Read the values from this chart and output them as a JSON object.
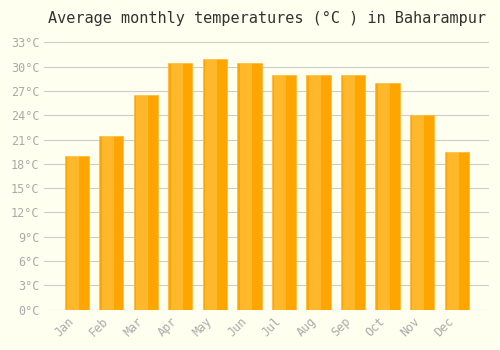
{
  "title": "Average monthly temperatures (°C ) in Baharampur",
  "months": [
    "Jan",
    "Feb",
    "Mar",
    "Apr",
    "May",
    "Jun",
    "Jul",
    "Aug",
    "Sep",
    "Oct",
    "Nov",
    "Dec"
  ],
  "values": [
    19.0,
    21.5,
    26.5,
    30.5,
    31.0,
    30.5,
    29.0,
    29.0,
    29.0,
    28.0,
    24.0,
    19.5
  ],
  "bar_color": "#FFA500",
  "bar_edge_color": "#FFB733",
  "background_color": "#FFFFF0",
  "grid_color": "#CCCCCC",
  "ylim": [
    0,
    34
  ],
  "yticks": [
    0,
    3,
    6,
    9,
    12,
    15,
    18,
    21,
    24,
    27,
    30,
    33
  ],
  "ytick_labels": [
    "0°C",
    "3°C",
    "6°C",
    "9°C",
    "12°C",
    "15°C",
    "18°C",
    "21°C",
    "24°C",
    "27°C",
    "30°C",
    "33°C"
  ],
  "tick_color": "#AAAAAA",
  "title_fontsize": 11,
  "tick_fontsize": 8.5,
  "font_family": "monospace"
}
